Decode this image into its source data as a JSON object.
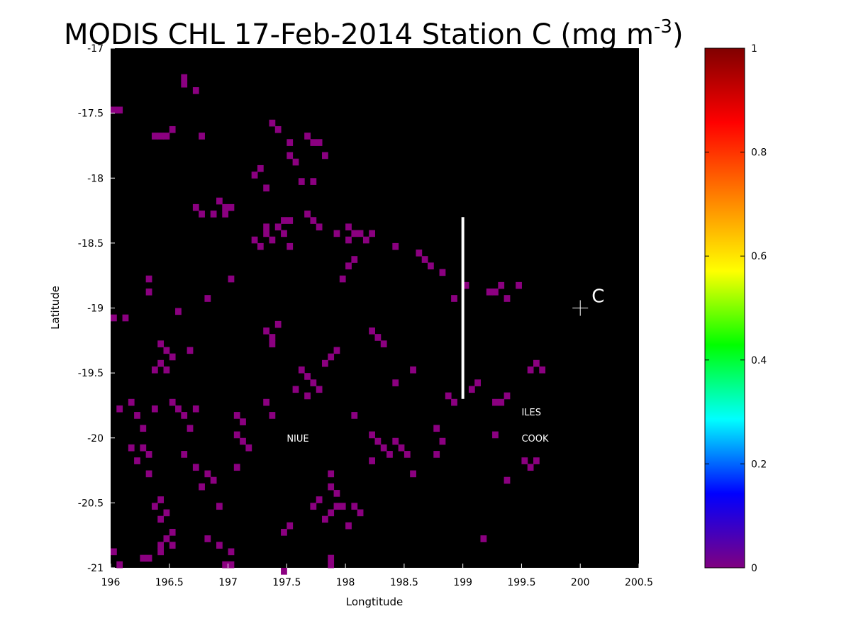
{
  "chart_data": {
    "type": "heatmap",
    "title": "MODIS CHL 17-Feb-2014 Station C (mg m",
    "title_superscript": "-3",
    "title_suffix": ")",
    "xlabel": "Longtitude",
    "ylabel": "Latitude",
    "xlim": [
      196,
      200.5
    ],
    "ylim": [
      -21,
      -17
    ],
    "xticks": [
      "196",
      "196.5",
      "197",
      "197.5",
      "198",
      "198.5",
      "199",
      "199.5",
      "200",
      "200.5"
    ],
    "yticks": [
      "-17",
      "-17.5",
      "-18",
      "-18.5",
      "-19",
      "-19.5",
      "-20",
      "-20.5",
      "-21"
    ],
    "background_color": "#000000",
    "pixel_color": "#8b0080",
    "pixel_value": 0.02,
    "cell_size_deg": 0.05,
    "transect": {
      "lon": 199,
      "lat_start": -18.3,
      "lat_end": -19.7,
      "color": "#ffffff"
    },
    "station": {
      "label": "C",
      "lon": 200,
      "lat": -19
    },
    "place_labels": [
      {
        "text": "NIUE",
        "lon": 197.5,
        "lat": -20
      },
      {
        "text": "ILES",
        "lon": 199.5,
        "lat": -19.8
      },
      {
        "text": "COOK",
        "lon": 199.5,
        "lat": -20
      }
    ],
    "colorbar": {
      "range": [
        0,
        1
      ],
      "ticks": [
        "0",
        "0.2",
        "0.4",
        "0.6",
        "0.8",
        "1"
      ],
      "colormap": [
        "#800080",
        "#0000ff",
        "#00ffff",
        "#00ff00",
        "#ffff00",
        "#ff8000",
        "#ff0000",
        "#800000"
      ]
    },
    "cells_lonlat": [
      [
        196.0,
        -17.45
      ],
      [
        196.05,
        -17.45
      ],
      [
        196.6,
        -17.2
      ],
      [
        196.6,
        -17.25
      ],
      [
        196.7,
        -17.3
      ],
      [
        196.35,
        -17.65
      ],
      [
        196.4,
        -17.65
      ],
      [
        196.45,
        -17.65
      ],
      [
        196.5,
        -17.6
      ],
      [
        196.75,
        -17.65
      ],
      [
        197.35,
        -17.55
      ],
      [
        197.4,
        -17.6
      ],
      [
        197.5,
        -17.7
      ],
      [
        197.65,
        -17.65
      ],
      [
        197.7,
        -17.7
      ],
      [
        197.75,
        -17.7
      ],
      [
        197.8,
        -17.8
      ],
      [
        197.5,
        -17.8
      ],
      [
        197.55,
        -17.85
      ],
      [
        197.2,
        -17.95
      ],
      [
        197.25,
        -17.9
      ],
      [
        197.3,
        -18.05
      ],
      [
        197.6,
        -18.0
      ],
      [
        197.7,
        -18.0
      ],
      [
        196.9,
        -18.15
      ],
      [
        196.95,
        -18.2
      ],
      [
        197.0,
        -18.2
      ],
      [
        196.95,
        -18.25
      ],
      [
        196.85,
        -18.25
      ],
      [
        196.7,
        -18.2
      ],
      [
        196.75,
        -18.25
      ],
      [
        197.3,
        -18.35
      ],
      [
        197.4,
        -18.35
      ],
      [
        197.3,
        -18.4
      ],
      [
        197.35,
        -18.45
      ],
      [
        197.2,
        -18.45
      ],
      [
        197.25,
        -18.5
      ],
      [
        197.45,
        -18.3
      ],
      [
        197.5,
        -18.3
      ],
      [
        197.45,
        -18.4
      ],
      [
        197.5,
        -18.5
      ],
      [
        197.65,
        -18.25
      ],
      [
        197.7,
        -18.3
      ],
      [
        197.75,
        -18.35
      ],
      [
        197.9,
        -18.4
      ],
      [
        198.0,
        -18.45
      ],
      [
        198.0,
        -18.35
      ],
      [
        198.05,
        -18.4
      ],
      [
        198.1,
        -18.4
      ],
      [
        198.15,
        -18.45
      ],
      [
        198.2,
        -18.4
      ],
      [
        198.05,
        -18.6
      ],
      [
        198.0,
        -18.65
      ],
      [
        197.95,
        -18.75
      ],
      [
        198.4,
        -18.5
      ],
      [
        198.6,
        -18.55
      ],
      [
        198.65,
        -18.6
      ],
      [
        198.7,
        -18.65
      ],
      [
        198.8,
        -18.7
      ],
      [
        199.2,
        -18.85
      ],
      [
        199.25,
        -18.85
      ],
      [
        199.3,
        -18.8
      ],
      [
        199.35,
        -18.9
      ],
      [
        199.45,
        -18.8
      ],
      [
        196.3,
        -18.75
      ],
      [
        196.3,
        -18.85
      ],
      [
        196.8,
        -18.9
      ],
      [
        197.0,
        -18.75
      ],
      [
        196.0,
        -19.05
      ],
      [
        196.1,
        -19.05
      ],
      [
        196.55,
        -19.0
      ],
      [
        197.3,
        -19.15
      ],
      [
        197.35,
        -19.2
      ],
      [
        197.4,
        -19.1
      ],
      [
        197.35,
        -19.25
      ],
      [
        198.2,
        -19.15
      ],
      [
        198.25,
        -19.2
      ],
      [
        198.3,
        -19.25
      ],
      [
        196.4,
        -19.25
      ],
      [
        196.45,
        -19.3
      ],
      [
        196.5,
        -19.35
      ],
      [
        196.4,
        -19.4
      ],
      [
        196.35,
        -19.45
      ],
      [
        196.45,
        -19.45
      ],
      [
        196.65,
        -19.3
      ],
      [
        197.6,
        -19.45
      ],
      [
        197.65,
        -19.5
      ],
      [
        197.7,
        -19.55
      ],
      [
        197.75,
        -19.6
      ],
      [
        197.65,
        -19.65
      ],
      [
        197.55,
        -19.6
      ],
      [
        197.8,
        -19.4
      ],
      [
        197.85,
        -19.35
      ],
      [
        197.9,
        -19.3
      ],
      [
        198.4,
        -19.55
      ],
      [
        198.55,
        -19.45
      ],
      [
        199.1,
        -19.55
      ],
      [
        199.05,
        -19.6
      ],
      [
        198.85,
        -19.65
      ],
      [
        198.9,
        -19.7
      ],
      [
        199.25,
        -19.7
      ],
      [
        199.3,
        -19.7
      ],
      [
        199.35,
        -19.65
      ],
      [
        199.55,
        -19.45
      ],
      [
        199.6,
        -19.4
      ],
      [
        199.65,
        -19.45
      ],
      [
        196.15,
        -19.7
      ],
      [
        196.05,
        -19.75
      ],
      [
        196.2,
        -19.8
      ],
      [
        196.35,
        -19.75
      ],
      [
        196.25,
        -19.9
      ],
      [
        196.15,
        -20.05
      ],
      [
        196.25,
        -20.05
      ],
      [
        196.3,
        -20.1
      ],
      [
        196.2,
        -20.15
      ],
      [
        196.3,
        -20.25
      ],
      [
        196.5,
        -19.7
      ],
      [
        196.55,
        -19.75
      ],
      [
        196.6,
        -19.8
      ],
      [
        196.7,
        -19.75
      ],
      [
        196.65,
        -19.9
      ],
      [
        196.6,
        -20.1
      ],
      [
        196.7,
        -20.2
      ],
      [
        196.8,
        -20.25
      ],
      [
        196.85,
        -20.3
      ],
      [
        196.75,
        -20.35
      ],
      [
        196.4,
        -20.45
      ],
      [
        196.35,
        -20.5
      ],
      [
        196.45,
        -20.55
      ],
      [
        196.4,
        -20.6
      ],
      [
        196.5,
        -20.7
      ],
      [
        196.45,
        -20.75
      ],
      [
        196.5,
        -20.8
      ],
      [
        196.4,
        -20.8
      ],
      [
        196.8,
        -20.75
      ],
      [
        196.9,
        -20.8
      ],
      [
        197.0,
        -20.85
      ],
      [
        196.0,
        -20.85
      ],
      [
        196.05,
        -20.95
      ],
      [
        196.25,
        -20.9
      ],
      [
        196.3,
        -20.9
      ],
      [
        196.4,
        -20.85
      ],
      [
        197.05,
        -19.8
      ],
      [
        197.1,
        -19.85
      ],
      [
        197.3,
        -19.7
      ],
      [
        197.35,
        -19.8
      ],
      [
        197.05,
        -19.95
      ],
      [
        197.1,
        -20.0
      ],
      [
        197.15,
        -20.05
      ],
      [
        198.05,
        -19.8
      ],
      [
        198.2,
        -19.95
      ],
      [
        198.25,
        -20.0
      ],
      [
        198.3,
        -20.05
      ],
      [
        198.35,
        -20.1
      ],
      [
        198.4,
        -20.0
      ],
      [
        198.45,
        -20.05
      ],
      [
        198.5,
        -20.1
      ],
      [
        198.2,
        -20.15
      ],
      [
        198.75,
        -19.9
      ],
      [
        198.8,
        -20.0
      ],
      [
        198.75,
        -20.1
      ],
      [
        199.5,
        -20.15
      ],
      [
        199.55,
        -20.2
      ],
      [
        199.6,
        -20.15
      ],
      [
        199.35,
        -20.3
      ],
      [
        197.85,
        -20.35
      ],
      [
        197.9,
        -20.4
      ],
      [
        197.9,
        -20.5
      ],
      [
        197.85,
        -20.55
      ],
      [
        197.8,
        -20.6
      ],
      [
        197.95,
        -20.5
      ],
      [
        198.05,
        -20.5
      ],
      [
        198.1,
        -20.55
      ],
      [
        197.75,
        -20.45
      ],
      [
        197.7,
        -20.5
      ],
      [
        197.85,
        -20.25
      ],
      [
        198.0,
        -20.65
      ],
      [
        197.5,
        -20.65
      ],
      [
        197.45,
        -20.7
      ],
      [
        197.85,
        -20.9
      ],
      [
        197.85,
        -20.95
      ],
      [
        196.95,
        -20.95
      ],
      [
        197.0,
        -20.95
      ],
      [
        197.45,
        -21.0
      ],
      [
        199.15,
        -20.75
      ],
      [
        198.55,
        -20.25
      ],
      [
        199.25,
        -19.95
      ],
      [
        197.05,
        -20.2
      ],
      [
        196.9,
        -20.5
      ],
      [
        198.9,
        -18.9
      ],
      [
        199.0,
        -18.8
      ]
    ]
  }
}
